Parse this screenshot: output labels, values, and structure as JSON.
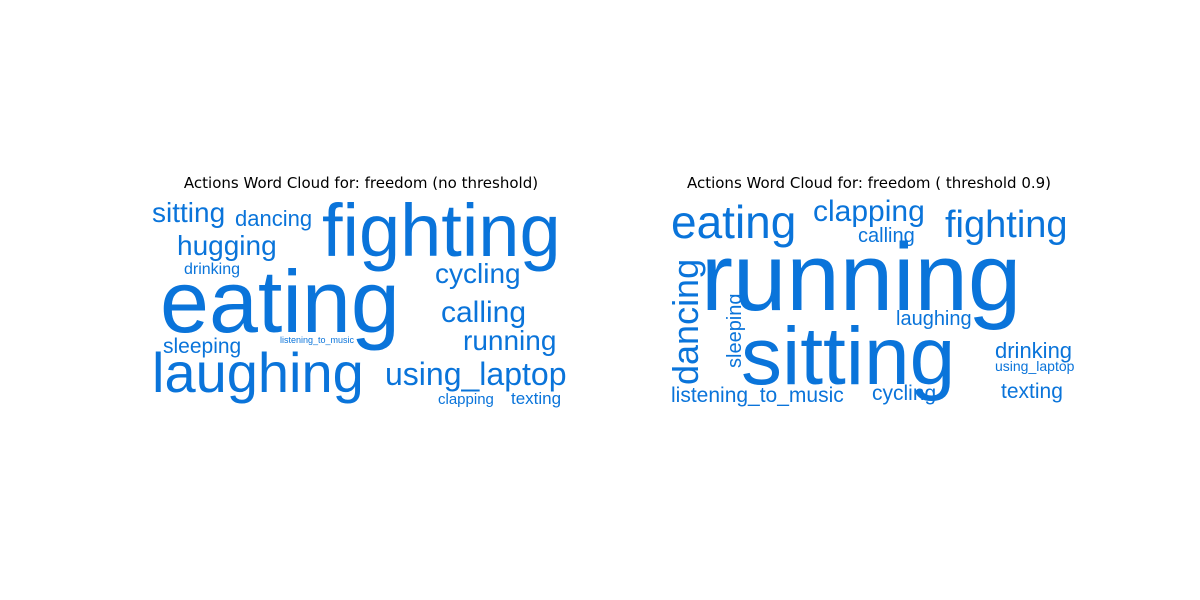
{
  "colors": {
    "word": "#0a74da",
    "background": "#ffffff",
    "title": "#000000"
  },
  "chart_data": [
    {
      "type": "wordcloud",
      "title": "Actions Word Cloud for: freedom (no threshold)",
      "words": [
        {
          "text": "sitting"
        },
        {
          "text": "dancing"
        },
        {
          "text": "fighting"
        },
        {
          "text": "hugging"
        },
        {
          "text": "drinking"
        },
        {
          "text": "cycling"
        },
        {
          "text": "eating"
        },
        {
          "text": "calling"
        },
        {
          "text": "running"
        },
        {
          "text": "sleeping"
        },
        {
          "text": "listening_to_music"
        },
        {
          "text": "laughing"
        },
        {
          "text": "using_laptop"
        },
        {
          "text": "clapping"
        },
        {
          "text": "texting"
        }
      ]
    },
    {
      "type": "wordcloud",
      "title": "Actions Word Cloud for: freedom ( threshold 0.9)",
      "words": [
        {
          "text": "eating"
        },
        {
          "text": "clapping"
        },
        {
          "text": "fighting"
        },
        {
          "text": "calling"
        },
        {
          "text": "running"
        },
        {
          "text": "dancing"
        },
        {
          "text": "sleeping"
        },
        {
          "text": "laughing"
        },
        {
          "text": "sitting"
        },
        {
          "text": "drinking"
        },
        {
          "text": "using_laptop"
        },
        {
          "text": "listening_to_music"
        },
        {
          "text": "cycling"
        },
        {
          "text": "texting"
        }
      ]
    }
  ]
}
